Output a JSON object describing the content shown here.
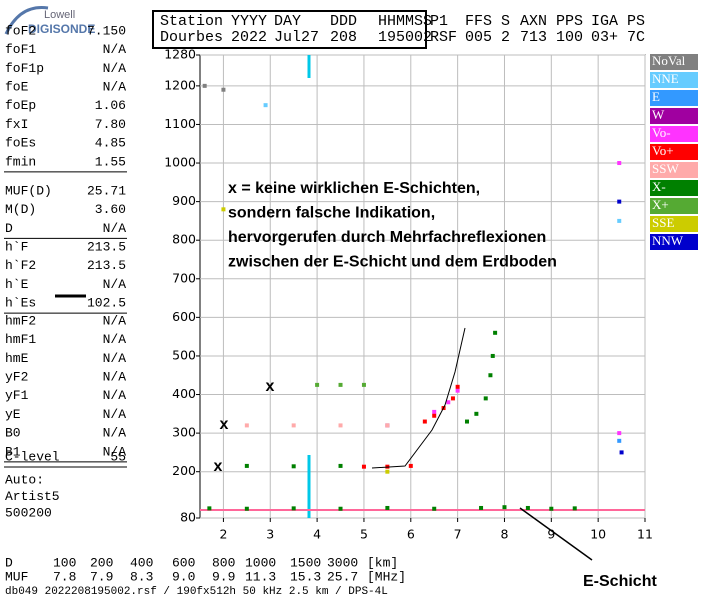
{
  "logo": {
    "brand": "Lowell",
    "product": "DIGISONDE"
  },
  "header": {
    "rows": [
      [
        "Station",
        "YYYY",
        "DAY",
        "DDD",
        "HHMMSS",
        "P1",
        "FFS",
        "S",
        "AXN",
        "PPS",
        "IGA",
        "PS"
      ],
      [
        "Dourbes",
        "2022",
        "Jul27",
        "208",
        "195002",
        "RSF",
        "005",
        "2",
        "713",
        "100",
        "03+",
        "7C"
      ]
    ]
  },
  "params": [
    [
      {
        "label": "foF2",
        "value": "7.150"
      },
      {
        "label": "foF1",
        "value": "N/A"
      },
      {
        "label": "foF1p",
        "value": "N/A"
      },
      {
        "label": "foE",
        "value": "N/A"
      },
      {
        "label": "foEp",
        "value": "1.06"
      },
      {
        "label": "fxI",
        "value": "7.80"
      },
      {
        "label": "foEs",
        "value": "4.85"
      },
      {
        "label": "fmin",
        "value": "1.55"
      }
    ],
    [
      {
        "label": "MUF(D)",
        "value": "25.71"
      },
      {
        "label": "M(D)",
        "value": "3.60"
      },
      {
        "label": "D",
        "value": "N/A"
      }
    ],
    [
      {
        "label": "h`F",
        "value": "213.5"
      },
      {
        "label": "h`F2",
        "value": "213.5"
      },
      {
        "label": "h`E",
        "value": "N/A"
      },
      {
        "label": "h`Es",
        "value": "102.5"
      }
    ],
    [
      {
        "label": "hmF2",
        "value": "N/A"
      },
      {
        "label": "hmF1",
        "value": "N/A"
      },
      {
        "label": "hmE",
        "value": "N/A"
      },
      {
        "label": "yF2",
        "value": "N/A"
      },
      {
        "label": "yF1",
        "value": "N/A"
      },
      {
        "label": "yE",
        "value": "N/A"
      },
      {
        "label": "B0",
        "value": "N/A"
      },
      {
        "label": "B1",
        "value": "N/A"
      }
    ],
    [
      {
        "label": "C-level",
        "value": "55"
      }
    ]
  ],
  "auto": [
    "Auto:",
    "Artist5",
    "500200"
  ],
  "chart_data": {
    "type": "scatter",
    "xlim": [
      1.5,
      11
    ],
    "xticks": [
      2,
      3,
      4,
      5,
      6,
      7,
      8,
      9,
      10,
      11
    ],
    "ylim": [
      80,
      1280
    ],
    "yticks": [
      80,
      200,
      300,
      400,
      500,
      600,
      700,
      800,
      900,
      1000,
      1100,
      1200,
      1280
    ],
    "grid": true,
    "series": [
      {
        "name": "NoVal",
        "color": "#808080",
        "x": [
          1.6,
          2.0
        ],
        "values": [
          1200,
          1190
        ]
      },
      {
        "name": "NNE",
        "color": "#66ccff",
        "x": [
          2.9,
          10.45
        ],
        "values": [
          1150,
          850
        ]
      },
      {
        "name": "E",
        "color": "#3399ff",
        "x": [
          10.45
        ],
        "values": [
          280
        ]
      },
      {
        "name": "W",
        "color": "#a000a0",
        "x": [
          5.5
        ],
        "values": [
          320
        ]
      },
      {
        "name": "Vo-",
        "color": "#ff33ff",
        "x": [
          6.5,
          6.8,
          7.0,
          10.45,
          10.45
        ],
        "values": [
          355,
          380,
          410,
          1000,
          300
        ]
      },
      {
        "name": "Vo+",
        "color": "#ff0000",
        "x": [
          6.3,
          6.5,
          6.7,
          6.9,
          7.0,
          5.0,
          5.5,
          6.0
        ],
        "values": [
          330,
          345,
          365,
          390,
          420,
          213,
          213,
          215
        ]
      },
      {
        "name": "SSW",
        "color": "#ffaaaa",
        "x": [
          2.5,
          3.5,
          4.5,
          5.5
        ],
        "values": [
          320,
          320,
          320,
          320
        ]
      },
      {
        "name": "X-",
        "color": "#008000",
        "x": [
          1.7,
          2.5,
          3.5,
          4.5,
          5.5,
          6.5,
          7.5,
          8.0,
          8.5,
          9.0,
          9.5,
          7.2,
          7.4,
          7.6,
          7.7,
          7.75,
          7.8,
          2.5,
          3.5,
          4.5
        ],
        "values": [
          105,
          104,
          105,
          104,
          106,
          104,
          106,
          108,
          106,
          104,
          105,
          330,
          350,
          390,
          450,
          500,
          560,
          215,
          214,
          215
        ]
      },
      {
        "name": "X+",
        "color": "#55aa33",
        "x": [
          4.0,
          4.5,
          5.0
        ],
        "values": [
          425,
          425,
          425
        ]
      },
      {
        "name": "SSE",
        "color": "#cccc00",
        "x": [
          2.0,
          5.5
        ],
        "values": [
          880,
          200
        ]
      },
      {
        "name": "NNW",
        "color": "#0000cc",
        "x": [
          10.45,
          10.5
        ],
        "values": [
          900,
          250
        ]
      }
    ],
    "annotations": [
      "x = keine wirklichen E-Schichten,",
      "sondern falsche Indikation,",
      "hervorgerufen durch Mehrfachreflexionen",
      "zwischen der E-Schicht und dem Erdboden"
    ],
    "markers": [
      "x",
      "x",
      "x"
    ],
    "layer_label": "E-Schicht"
  },
  "muf_table": {
    "rows": [
      [
        "D",
        "100",
        "200",
        "400",
        "600",
        "800",
        "1000",
        "1500",
        "3000",
        "[km]"
      ],
      [
        "MUF",
        "7.8",
        "7.9",
        "8.3",
        "9.0",
        "9.9",
        "11.3",
        "15.3",
        "25.7",
        "[MHz]"
      ]
    ]
  },
  "footer": "db049 2022208195002.rsf / 190fx512h 50 kHz 2.5 km / DPS-4L"
}
